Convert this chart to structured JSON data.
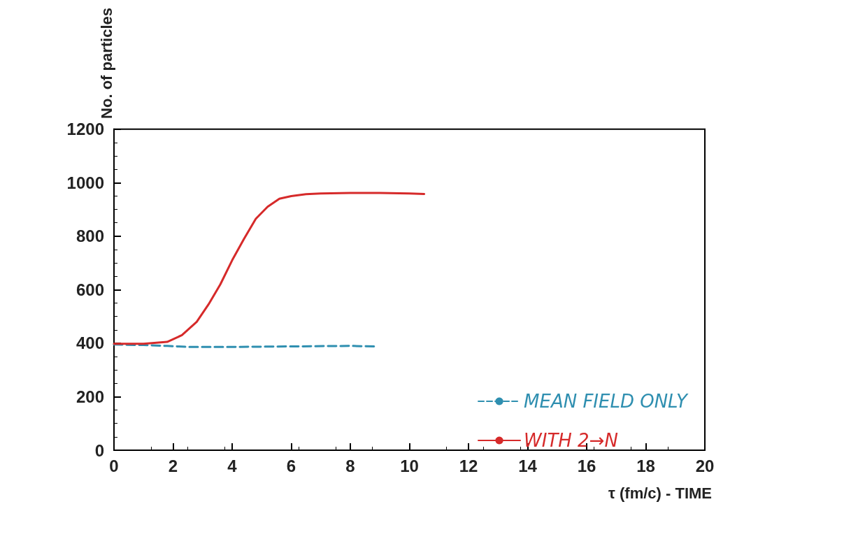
{
  "chart_data": {
    "type": "line",
    "xlabel": "τ (fm/c) - TIME",
    "ylabel": "No. of particles",
    "xlim": [
      0,
      20
    ],
    "xticks": [
      0,
      2,
      4,
      6,
      8,
      10,
      12,
      14,
      16,
      18,
      20
    ],
    "ylim": [
      0,
      1200
    ],
    "yticks": [
      0,
      200,
      400,
      600,
      800,
      1000,
      1200
    ],
    "grid": false,
    "legend": "bottom right",
    "marker": "none",
    "series": [
      {
        "name": "MEAN FIELD ONLY",
        "color": "#2f8fb0",
        "line_style": "dashed",
        "x": [
          0,
          1,
          1.8,
          2.5,
          4,
          6,
          8,
          8.8
        ],
        "values": [
          395,
          393,
          390,
          386,
          386,
          388,
          390,
          388
        ]
      },
      {
        "name": "WITH 2→N",
        "color": "#d62a2a",
        "line_style": "solid",
        "x": [
          0,
          1,
          1.8,
          2.3,
          2.8,
          3.2,
          3.6,
          4,
          4.4,
          4.8,
          5.2,
          5.6,
          6,
          6.5,
          7,
          8,
          9,
          10,
          10.5
        ],
        "values": [
          398,
          398,
          405,
          430,
          480,
          545,
          620,
          710,
          790,
          865,
          910,
          940,
          950,
          957,
          960,
          962,
          962,
          960,
          958
        ]
      }
    ]
  }
}
